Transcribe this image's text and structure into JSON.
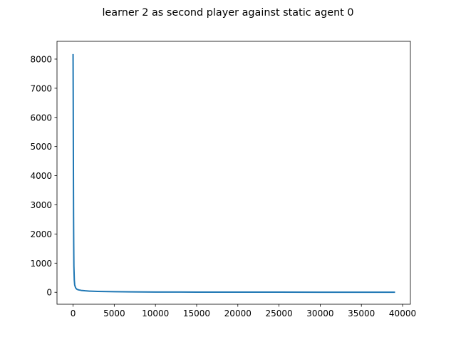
{
  "chart_data": {
    "type": "line",
    "title": "learner 2 as second player against static agent 0",
    "xlabel": "",
    "ylabel": "",
    "xlim": [
      -1950,
      40950
    ],
    "ylim": [
      -410,
      8610
    ],
    "x_ticks": [
      0,
      5000,
      10000,
      15000,
      20000,
      25000,
      30000,
      35000,
      40000
    ],
    "x_tick_labels": [
      "0",
      "5000",
      "10000",
      "15000",
      "20000",
      "25000",
      "30000",
      "35000",
      "40000"
    ],
    "y_ticks": [
      0,
      1000,
      2000,
      3000,
      4000,
      5000,
      6000,
      7000,
      8000
    ],
    "y_tick_labels": [
      "0",
      "1000",
      "2000",
      "3000",
      "4000",
      "5000",
      "6000",
      "7000",
      "8000"
    ],
    "grid": false,
    "series": [
      {
        "color": "#1f77b4",
        "x": [
          0,
          20,
          40,
          60,
          80,
          100,
          150,
          200,
          300,
          400,
          500,
          700,
          1000,
          1500,
          2000,
          3000,
          5000,
          7000,
          10000,
          15000,
          20000,
          25000,
          30000,
          35000,
          39000
        ],
        "y": [
          8150,
          6500,
          4200,
          2600,
          1600,
          900,
          420,
          250,
          160,
          120,
          100,
          80,
          65,
          50,
          40,
          30,
          20,
          14,
          10,
          7,
          5,
          4,
          3,
          2,
          2
        ]
      }
    ]
  }
}
